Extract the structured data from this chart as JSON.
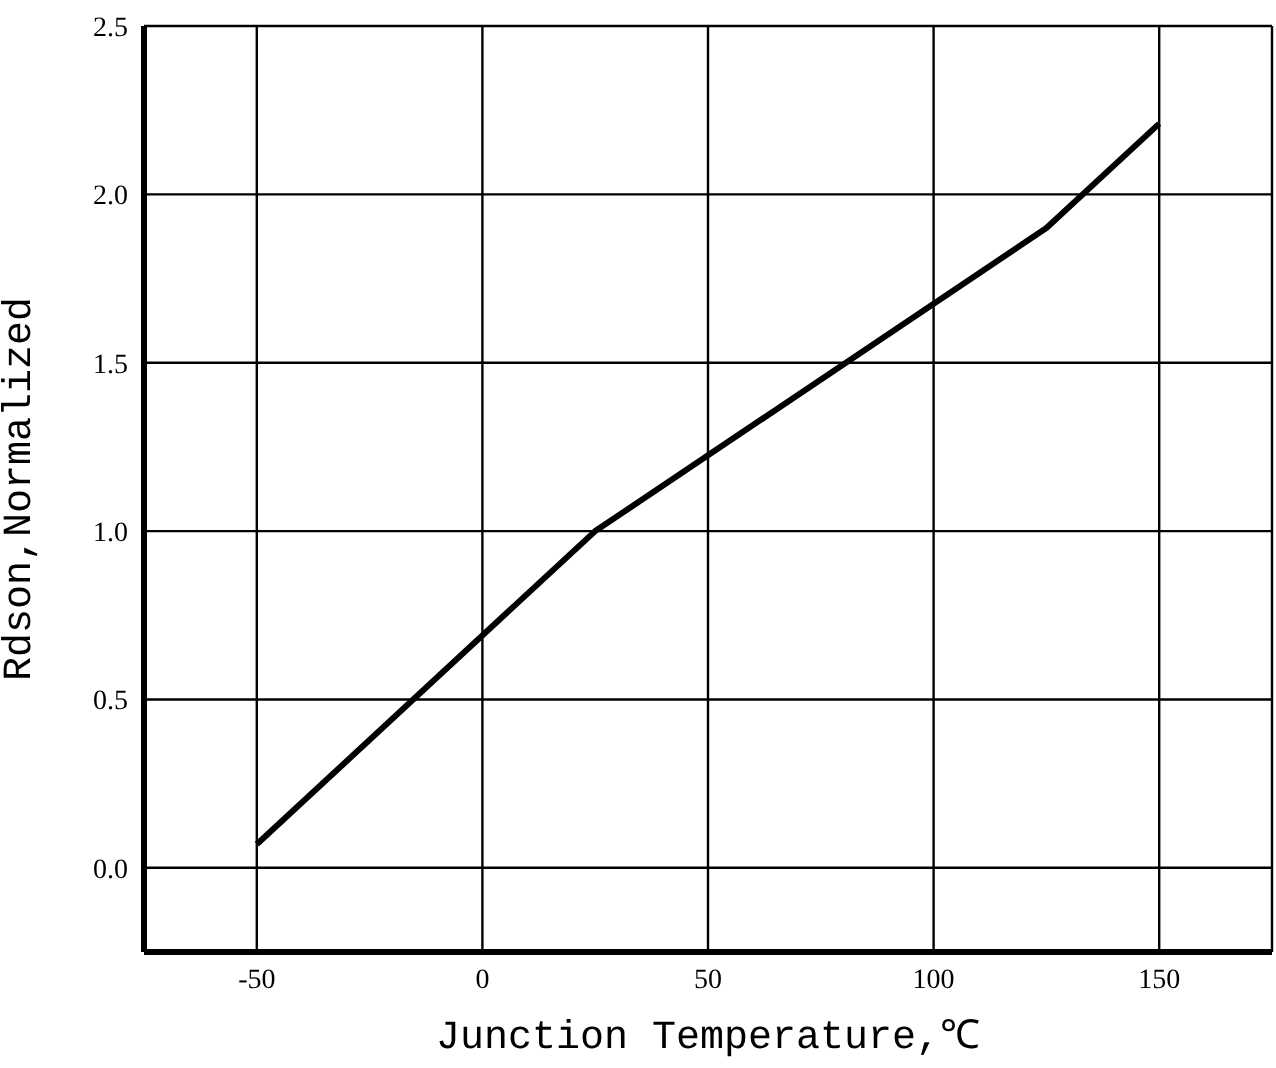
{
  "chart_data": {
    "type": "line",
    "xlabel": "Junction Temperature,℃",
    "ylabel": "Rdson,Normalized",
    "series": [
      {
        "color": "#000000",
        "x": [
          -50,
          25,
          125,
          150
        ],
        "values": [
          0.07,
          1.0,
          1.9,
          2.21
        ]
      }
    ],
    "xlim": [
      -75,
      175
    ],
    "xticks": [
      -50,
      0,
      50,
      100,
      150
    ],
    "ylim": [
      -0.25,
      2.5
    ],
    "yticks": [
      {
        "value": 0,
        "label": "0.0"
      },
      {
        "value": 0.5,
        "label": "0.5"
      },
      {
        "value": 1,
        "label": "1.0"
      },
      {
        "value": 1.5,
        "label": "1.5"
      },
      {
        "value": 2,
        "label": "2.0"
      },
      {
        "value": 2.5,
        "label": "2.5"
      }
    ],
    "grid": true,
    "marker": "none",
    "line_style": "solid",
    "legend": false
  }
}
